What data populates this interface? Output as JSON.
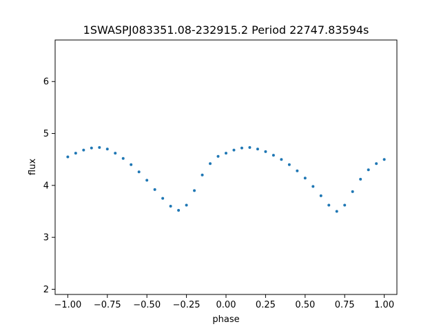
{
  "chart_data": {
    "type": "scatter",
    "title": "1SWASPJ083351.08-232915.2 Period 22747.83594s",
    "xlabel": "phase",
    "ylabel": "flux",
    "xlim": [
      -1.08,
      1.08
    ],
    "ylim": [
      1.9,
      6.8
    ],
    "xticks": [
      -1.0,
      -0.75,
      -0.5,
      -0.25,
      0.0,
      0.25,
      0.5,
      0.75,
      1.0
    ],
    "xtick_labels": [
      "−1.00",
      "−0.75",
      "−0.50",
      "−0.25",
      "0.00",
      "0.25",
      "0.50",
      "0.75",
      "1.00"
    ],
    "yticks": [
      2,
      3,
      4,
      5,
      6
    ],
    "ytick_labels": [
      "2",
      "3",
      "4",
      "5",
      "6"
    ],
    "grid": false,
    "marker_color": "#1f77b4",
    "series": [
      {
        "x": [
          -1.0,
          -0.95,
          -0.9,
          -0.85,
          -0.8,
          -0.75,
          -0.7,
          -0.65,
          -0.6,
          -0.55,
          -0.5,
          -0.45,
          -0.4,
          -0.35,
          -0.3,
          -0.25,
          -0.2,
          -0.15,
          -0.1,
          -0.05,
          0.0,
          0.05,
          0.1,
          0.15,
          0.2,
          0.25,
          0.3,
          0.35,
          0.4,
          0.45,
          0.5,
          0.55,
          0.6,
          0.65,
          0.7,
          0.75,
          0.8,
          0.85,
          0.9,
          0.95,
          1.0
        ],
        "y": [
          4.55,
          4.62,
          4.68,
          4.72,
          4.73,
          4.7,
          4.62,
          4.52,
          4.4,
          4.26,
          4.1,
          3.92,
          3.75,
          3.6,
          3.52,
          3.62,
          3.9,
          4.2,
          4.42,
          4.56,
          4.62,
          4.68,
          4.72,
          4.73,
          4.7,
          4.65,
          4.58,
          4.5,
          4.4,
          4.28,
          4.14,
          3.98,
          3.8,
          3.62,
          3.5,
          3.62,
          3.88,
          4.12,
          4.3,
          4.42,
          4.5
        ]
      }
    ]
  }
}
